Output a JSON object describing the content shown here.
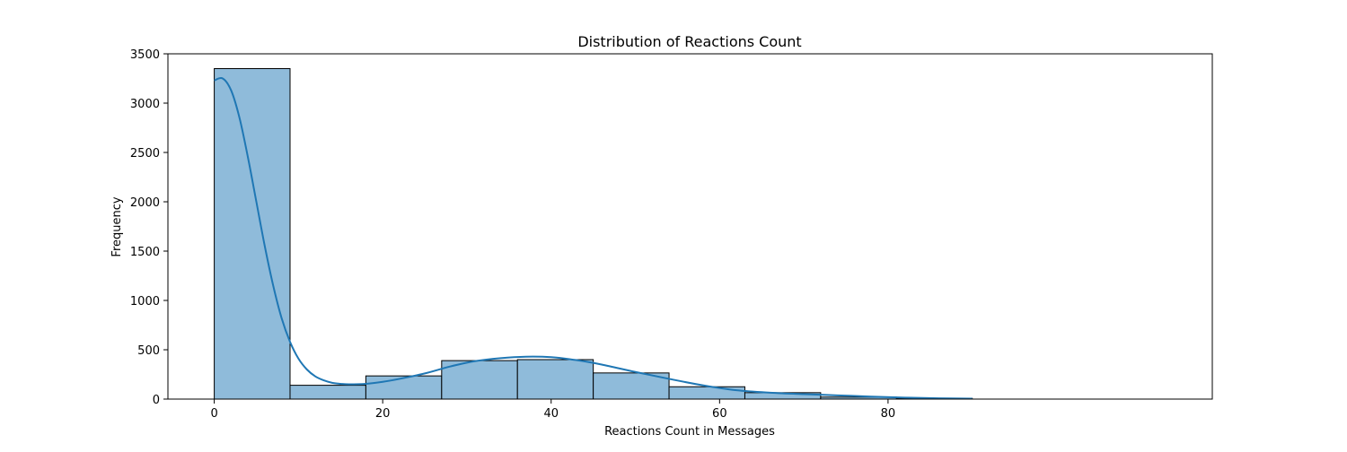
{
  "chart_data": {
    "type": "bar",
    "subtype": "histogram-with-kde",
    "title": "Distribution of Reactions Count",
    "xlabel": "Reactions Count in Messages",
    "ylabel": "Frequency",
    "xlim": [
      -5.5,
      118.5
    ],
    "ylim": [
      0,
      3500
    ],
    "xticks": [
      0,
      20,
      40,
      60,
      80
    ],
    "yticks": [
      0,
      500,
      1000,
      1500,
      2000,
      2500,
      3000,
      3500
    ],
    "bins": [
      {
        "start": 0,
        "end": 9,
        "value": 3350
      },
      {
        "start": 9,
        "end": 18,
        "value": 140
      },
      {
        "start": 18,
        "end": 27,
        "value": 235
      },
      {
        "start": 27,
        "end": 36,
        "value": 390
      },
      {
        "start": 36,
        "end": 45,
        "value": 400
      },
      {
        "start": 45,
        "end": 54,
        "value": 265
      },
      {
        "start": 54,
        "end": 63,
        "value": 125
      },
      {
        "start": 63,
        "end": 72,
        "value": 65
      },
      {
        "start": 72,
        "end": 81,
        "value": 20
      },
      {
        "start": 81,
        "end": 90,
        "value": 8
      }
    ],
    "kde": {
      "x": [
        0,
        1,
        2,
        3,
        4,
        5,
        6,
        7,
        8,
        9,
        10,
        11,
        12,
        13,
        14,
        15,
        16,
        18,
        20,
        22,
        25,
        28,
        31,
        34,
        37,
        40,
        43,
        46,
        50,
        54,
        58,
        62,
        66,
        70,
        74,
        78,
        82,
        86,
        90
      ],
      "y": [
        3230,
        3250,
        3130,
        2850,
        2450,
        2000,
        1550,
        1150,
        820,
        580,
        410,
        300,
        230,
        190,
        165,
        155,
        150,
        155,
        175,
        205,
        260,
        330,
        385,
        415,
        430,
        425,
        395,
        350,
        275,
        205,
        140,
        90,
        65,
        50,
        38,
        25,
        15,
        8,
        5
      ]
    },
    "grid": false,
    "legend": "none",
    "colors": {
      "bar_fill": "#8fbbda",
      "bar_edge": "#000000",
      "kde_line": "#1f77b4",
      "axes": "#000000"
    }
  }
}
